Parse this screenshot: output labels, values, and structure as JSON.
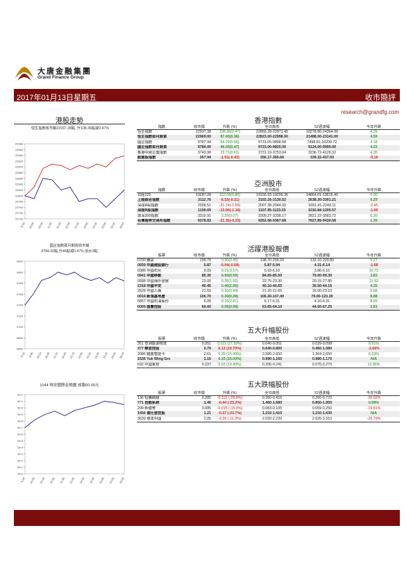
{
  "header": {
    "company_cn": "大唐金融集團",
    "company_en": "Grand Finance Group",
    "date": "2017年01月13日星期五",
    "report_title": "收市簡評",
    "email": "research@grandfg.com"
  },
  "left_section": {
    "title": "港股走勢",
    "caption1": "恒生指數收市報22937.38點, 升108.36點或0.47%",
    "caption2a": "國企指數即月期貨收市報",
    "caption2b": "9784.00點,升46點或0.47%,低水3點",
    "caption3": "1044 恒安國際走勢圖  收報60.05元"
  },
  "chart_data": [
    {
      "type": "line",
      "title": "",
      "x": [
        "9:30",
        "10:00",
        "10:30",
        "11:00",
        "11:30",
        "12:00",
        "13:30",
        "14:00",
        "14:30",
        "15:00",
        "15:30",
        "16:00"
      ],
      "yticks": [
        22720,
        22740,
        22760,
        22780,
        22800,
        22820,
        22840,
        22860,
        22880,
        22900,
        22920,
        22940,
        22960,
        22980
      ],
      "ylim": [
        22720,
        22980
      ],
      "series": [
        {
          "color": "#d62020",
          "values": [
            22800,
            22830,
            22895,
            22910,
            22905,
            22890,
            22905,
            22895,
            22910,
            22900,
            22930,
            22938
          ]
        },
        {
          "color": "#1a1a9a",
          "values": [
            22800,
            22790,
            22860,
            22855,
            22820,
            22830,
            22780,
            22790,
            22790,
            22760,
            22790,
            22820
          ]
        }
      ]
    },
    {
      "type": "line",
      "title": "",
      "x": [
        "9:15",
        "9:45",
        "10:15",
        "10:45",
        "11:15",
        "11:45",
        "13:15",
        "13:45",
        "14:15",
        "14:45",
        "15:15",
        "15:45",
        "16:15"
      ],
      "yticks": [
        9660,
        9680,
        9700,
        9720,
        9740,
        9760,
        9780,
        9800,
        9820
      ],
      "ylim": [
        9660,
        9820
      ],
      "series": [
        {
          "color": "#1a1a9a",
          "values": [
            9740,
            9760,
            9785,
            9790,
            9800,
            9795,
            9800,
            9790,
            9785,
            9790,
            9780,
            9790,
            9784
          ]
        }
      ]
    },
    {
      "type": "line",
      "title": "",
      "x": [
        "9:30",
        "10:00",
        "10:30",
        "11:00",
        "11:30",
        "13:30",
        "14:00",
        "14:30",
        "15:00",
        "15:30",
        "16:00"
      ],
      "yticks": [
        59.0,
        59.1,
        59.2,
        59.3,
        59.4,
        59.5,
        59.6,
        59.7,
        59.8,
        59.9,
        60.0,
        60.1,
        60.2
      ],
      "ylim": [
        59.0,
        60.2
      ],
      "series": [
        {
          "color": "#1a1a9a",
          "values": [
            59.7,
            59.82,
            59.9,
            59.95,
            59.88,
            59.96,
            60.0,
            60.04,
            60.1,
            60.08,
            60.05
          ]
        }
      ]
    }
  ],
  "hk_indices": {
    "title": "香港指數",
    "headers": [
      "指數",
      "收市價",
      "升跌 (%)",
      "全日高低",
      "52週波幅",
      "今年升跌"
    ],
    "rows": [
      {
        "name": "恆生指數",
        "close": "22937.38",
        "chg": "108.36(0.47)",
        "range": "22859.28-22971.45",
        "w52": "18278.80-24364.00",
        "ytd": "4.26",
        "dir": "up",
        "hl": false
      },
      {
        "name": "恆生指數即月期貨",
        "close": "22969.00",
        "chg": "87.00(0.38)",
        "range": "22823.00-22998.00",
        "w52": "21488.00-23141.00",
        "ytd": "4.59",
        "dir": "up",
        "hl": true
      },
      {
        "name": "國企指數",
        "close": "9787.34",
        "chg": "64.29(0.66)",
        "range": "9731.05-9808.58",
        "w52": "7498.81-10209.72",
        "ytd": "4.18",
        "dir": "up",
        "hl": false
      },
      {
        "name": "國企指數即月期貨",
        "close": "9784.00",
        "chg": "46.00(0.47)",
        "range": "9723.00-9820.00",
        "w52": "9124.00-9999.00",
        "ytd": "4.22",
        "dir": "up",
        "hl": true
      },
      {
        "name": "香港中資企業指數",
        "close": "3743.98",
        "chg": "22.71(0.61)",
        "range": "3731.19-3753.04",
        "w52": "3236.72-4128.32",
        "ytd": "4.35",
        "dir": "up",
        "hl": false
      },
      {
        "name": "創業板指數",
        "close": "357.94",
        "chg": "-1.51(-0.42)",
        "range": "356.17-360.66",
        "w52": "339.32-437.00",
        "ytd": "-0.16",
        "dir": "dn",
        "hl": true
      }
    ]
  },
  "asia_markets": {
    "title": "亞洲股市",
    "headers": [
      "指數",
      "收市價",
      "升跌 (%)",
      "全日高低",
      "52週波幅",
      "今年升跌"
    ],
    "rows": [
      {
        "name": "日經225",
        "close": "19287.28",
        "chg": "152.58(0.80)",
        "range": "19156.93-19299.36",
        "w52": "14864.01-19615.40",
        "ytd": "0.90",
        "dir": "up",
        "hl": false
      },
      {
        "name": "上證綜合指數",
        "close": "3112.76",
        "chg": "-6.53(-0.21)",
        "range": "3102.16-3130.52",
        "w52": "2638.30-3301.21",
        "ytd": "0.29",
        "dir": "dn",
        "hl": true
      },
      {
        "name": "深證A股指數",
        "close": "2009.51",
        "chg": "-31.74(-1.55)",
        "range": "2007.38-2044.00",
        "w52": "1691.41-2243.11",
        "ytd": "-2.45",
        "dir": "dn",
        "hl": false
      },
      {
        "name": "深證B股指數",
        "close": "1109.69",
        "chg": "-13.00(-1.16)",
        "range": "1107.95-1123.03",
        "w52": "1016.84-1205.57",
        "ytd": "-1.60",
        "dir": "dn",
        "hl": true
      },
      {
        "name": "滬深300指數",
        "close": "3319.91",
        "chg": "2.29(0.07)",
        "range": "3309.37-3338.17",
        "w52": "2821.22-3583.72",
        "ytd": "0.30",
        "dir": "up",
        "hl": false
      },
      {
        "name": "台灣證券交易所指數",
        "close": "9378.83",
        "chg": "-31.35(-0.33)",
        "range": "9352.08-9387.68",
        "w52": "7627.89-9430.58",
        "ytd": "1.35",
        "dir": "dn",
        "hl": true
      }
    ]
  },
  "active_stocks": {
    "title": "活躍港股報價",
    "headers": [
      "股票",
      "收市價",
      "升跌 (%)",
      "全日高低",
      "52週波幅",
      "今年升跌"
    ],
    "rows": [
      {
        "name": "0700 騰訊",
        "close": "199.70",
        "chg": "0.90(0.45)",
        "range": "198.70-200.20",
        "w52": "132.10-220.80",
        "ytd": "5.27",
        "dir": "up",
        "hl": false
      },
      {
        "name": "0939 中國建設銀行",
        "close": "5.87",
        "chg": "-0.04(-0.68)",
        "range": "5.87-5.94",
        "w52": "4.31-6.14",
        "ytd": "-1.68",
        "dir": "dn",
        "hl": true
      },
      {
        "name": "0386 中國石化",
        "close": "6.09",
        "chg": "0.21(3.57)",
        "range": "5.93-6.10",
        "w52": "3.86-6.10",
        "ytd": "10.73",
        "dir": "up",
        "hl": false
      },
      {
        "name": "0941 中國移動",
        "close": "85.35",
        "chg": "0.50(0.59)",
        "range": "84.65-85.50",
        "w52": "79.00-99.30",
        "ytd": "3.83",
        "dir": "up",
        "hl": true
      },
      {
        "name": "0688 中國海外發展",
        "close": "23.00",
        "chg": "0.35(1.55)",
        "range": "22.75-23.30",
        "w52": "20.15-27.85",
        "ytd": "11.92",
        "dir": "up",
        "hl": false
      },
      {
        "name": "2318 中國平安",
        "close": "40.45",
        "chg": "0.40(1.00)",
        "range": "40.10-40.65",
        "w52": "30.50-44.15",
        "ytd": "4.25",
        "dir": "up",
        "hl": true
      },
      {
        "name": "2628 中國人壽",
        "close": "21.55",
        "chg": "0.20(0.94)",
        "range": "21.20-21.65",
        "w52": "16.00-23.10",
        "ytd": "6.68",
        "dir": "up",
        "hl": false
      },
      {
        "name": "0016 新鴻基地產",
        "close": "106.70",
        "chg": "0.30(0.28)",
        "range": "106.30-107.40",
        "w52": "79.00-123.30",
        "ytd": "8.88",
        "dir": "up",
        "hl": true
      },
      {
        "name": "0857 中國石油股份",
        "close": "6.28",
        "chg": "0.16(2.61)",
        "range": "6.17-6.31",
        "w52": "4.16-6.31",
        "ytd": "8.65",
        "dir": "up",
        "hl": false
      },
      {
        "name": "0005 匯豐控股",
        "close": "64.00",
        "chg": "0.05(0.08)",
        "range": "63.65-64.10",
        "w52": "44.50-67.25",
        "ytd": "2.81",
        "dir": "up",
        "hl": true
      }
    ]
  },
  "top_gainers": {
    "title": "五大升幅股份",
    "headers": [
      "股票",
      "收市價",
      "升跌 (%)",
      "全日高低",
      "52週波幅",
      "今年升跌"
    ],
    "rows": [
      {
        "name": "351 亞洲能源物流",
        "close": "0.051",
        "chg": "0.011 (27.50%)",
        "range": "0.040-0.051",
        "w52": "0.039-0.098",
        "ytd": "8.51%",
        "dir": "up",
        "hl": false
      },
      {
        "name": "377 華君控股",
        "close": "0.79",
        "chg": "0.13 (19.70%)",
        "range": "0.640-0.800",
        "w52": "0.460-1.080",
        "ytd": "-3.66%",
        "dir": "dn",
        "hl": true
      },
      {
        "name": "2086 鍵鑫智能卡",
        "close": "2.61",
        "chg": "0.35 (15.49%)",
        "range": "2.580-2.650",
        "w52": "1.264-2.650",
        "ytd": "6.53%",
        "dir": "up",
        "hl": false
      },
      {
        "name": "1536 Yuk Wing Grc",
        "close": "1.15",
        "chg": "0.15 (15.00%)",
        "range": "0.990-1.160",
        "w52": "0.980-1.170",
        "ytd": "N/A",
        "dir": "up",
        "hl": true
      },
      {
        "name": "692 中國家居",
        "close": "0.237",
        "chg": "0.03 (14.49%)",
        "range": "0.206-0.241",
        "w52": "0.070-0.270",
        "ytd": "12.86%",
        "dir": "up",
        "hl": false
      }
    ]
  },
  "top_losers": {
    "title": "五大跌幅股份",
    "headers": [
      "股票",
      "收市價",
      "升跌 (%)",
      "全日高低",
      "52週波幅",
      "今年升跌"
    ],
    "rows": [
      {
        "name": "136 恒騰網絡",
        "close": "0.285",
        "chg": "-0.115 (-28.8%)",
        "range": "0.260-0.410",
        "w52": "0.260-0.770",
        "ytd": "-26.92%",
        "dir": "dn",
        "hl": false
      },
      {
        "name": "771 自動系統",
        "close": "1.46",
        "chg": "-0.44 (-23.2%)",
        "range": "1.460-1.680",
        "w52": "0.850-1.950",
        "ytd": "0.69%",
        "dir": "dn",
        "hl": true
      },
      {
        "name": "299 新體育",
        "close": "0.085",
        "chg": "-0.015 (-15.0%)",
        "range": "0.083-0.105",
        "w52": "0.059-0.250",
        "ytd": "-19.81%",
        "dir": "dn",
        "hl": false
      },
      {
        "name": "1656 億仕登控股",
        "close": "1.21",
        "chg": "-0.37 (-23.7%)",
        "range": "1.210-1.410",
        "w52": "1.210-1.630",
        "ytd": "N/A",
        "dir": "dn",
        "hl": true
      },
      {
        "name": "3639 億達中國",
        "close": "2.05",
        "chg": "-0.26 (-11.3%)",
        "range": "2.020-2.220",
        "w52": "2.020-3.310",
        "ytd": "-26.79%",
        "dir": "dn",
        "hl": false
      }
    ]
  }
}
